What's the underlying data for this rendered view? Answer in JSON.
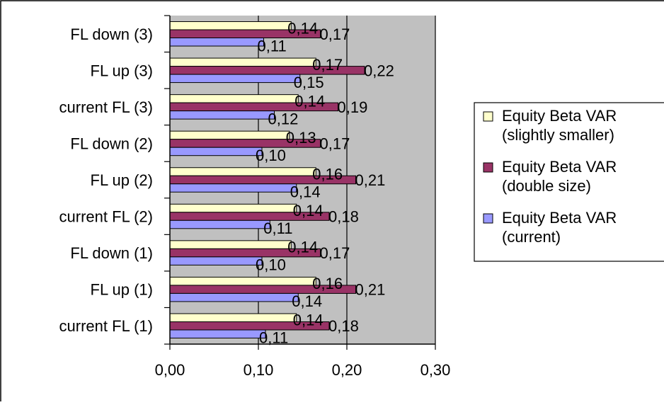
{
  "chart_data": {
    "type": "bar",
    "orientation": "horizontal",
    "categories": [
      "FL down (3)",
      "FL up (3)",
      "current FL (3)",
      "FL down (2)",
      "FL up (2)",
      "current FL (2)",
      "FL down (1)",
      "FL up (1)",
      "current FL (1)"
    ],
    "series": [
      {
        "name": "Equity Beta VAR (slightly smaller)",
        "values": [
          0.137,
          0.165,
          0.145,
          0.135,
          0.165,
          0.143,
          0.137,
          0.165,
          0.143
        ],
        "labels": [
          "0,14",
          "0,17",
          "0,14",
          "0,13",
          "0,16",
          "0,14",
          "0,14",
          "0,16",
          "0,14"
        ]
      },
      {
        "name": "Equity Beta VAR (double size)",
        "values": [
          0.17,
          0.22,
          0.19,
          0.17,
          0.21,
          0.18,
          0.17,
          0.21,
          0.18
        ],
        "labels": [
          "0,17",
          "0,22",
          "0,19",
          "0,17",
          "0,21",
          "0,18",
          "0,17",
          "0,21",
          "0,18"
        ]
      },
      {
        "name": "Equity Beta VAR (current)",
        "values": [
          0.106,
          0.147,
          0.118,
          0.104,
          0.143,
          0.113,
          0.104,
          0.145,
          0.108
        ],
        "labels": [
          "0,11",
          "0,15",
          "0,12",
          "0,10",
          "0,14",
          "0,11",
          "0,10",
          "0,14",
          "0,11"
        ]
      }
    ],
    "legend": [
      {
        "lines": [
          "Equity Beta VAR",
          "(slightly smaller)"
        ],
        "color": "#FFFFCC"
      },
      {
        "lines": [
          "Equity Beta VAR",
          "(double size)"
        ],
        "color": "#993366"
      },
      {
        "lines": [
          "Equity Beta VAR",
          "(current)"
        ],
        "color": "#9999FF"
      }
    ],
    "colors": [
      "#FFFFCC",
      "#993366",
      "#9999FF"
    ],
    "xlim": [
      0,
      0.3
    ],
    "xticks": [
      "0,00",
      "0,10",
      "0,20",
      "0,30"
    ],
    "title": "",
    "xlabel": "",
    "ylabel": "",
    "legend_position": "right",
    "plot_background": "#C0C0C0",
    "grid": true
  }
}
